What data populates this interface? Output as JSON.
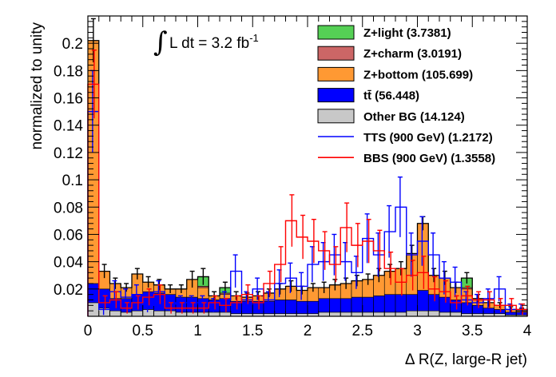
{
  "chart_data": {
    "type": "histogram",
    "ylabel": "normalized to unity",
    "xlabel": "Δ R(Z, large-R jet)",
    "xlim": [
      0,
      4
    ],
    "ylim": [
      0,
      0.22
    ],
    "x_ticks": [
      "0",
      "0.5",
      "1",
      "1.5",
      "2",
      "2.5",
      "3",
      "3.5",
      "4"
    ],
    "y_ticks": [
      "0.02",
      "0.04",
      "0.06",
      "0.08",
      "0.1",
      "0.12",
      "0.14",
      "0.16",
      "0.18",
      "0.2"
    ],
    "annotation": {
      "integral_sign": "∫",
      "text": "L dt = 3.2 fb",
      "superscript": "-1"
    },
    "bin_edges": [
      0,
      0.1,
      0.2,
      0.3,
      0.4,
      0.5,
      0.6,
      0.7,
      0.8,
      0.9,
      1.0,
      1.1,
      1.2,
      1.3,
      1.4,
      1.5,
      1.6,
      1.7,
      1.8,
      1.9,
      2.0,
      2.1,
      2.2,
      2.3,
      2.4,
      2.5,
      2.6,
      2.7,
      2.8,
      2.9,
      3.0,
      3.1,
      3.2,
      3.3,
      3.4,
      3.5,
      3.6,
      3.7,
      3.8,
      3.9,
      4.0
    ],
    "stack": [
      {
        "name": "Other BG (14.124)",
        "color": "#c8c8c8",
        "values": [
          0.01,
          0.006,
          0.004,
          0.003,
          0.004,
          0.005,
          0.004,
          0.004,
          0.003,
          0.003,
          0.003,
          0.003,
          0.003,
          0.002,
          0.002,
          0.002,
          0.002,
          0.002,
          0.002,
          0.002,
          0.002,
          0.003,
          0.003,
          0.003,
          0.003,
          0.003,
          0.003,
          0.003,
          0.003,
          0.004,
          0.004,
          0.004,
          0.003,
          0.003,
          0.002,
          0.002,
          0.002,
          0.002,
          0.001,
          0.001
        ]
      },
      {
        "name": "tt̄ (56.448)",
        "color": "#0000ff",
        "values": [
          0.014,
          0.014,
          0.009,
          0.01,
          0.012,
          0.013,
          0.013,
          0.012,
          0.011,
          0.011,
          0.01,
          0.009,
          0.01,
          0.009,
          0.009,
          0.009,
          0.009,
          0.01,
          0.01,
          0.009,
          0.009,
          0.01,
          0.01,
          0.01,
          0.011,
          0.011,
          0.012,
          0.013,
          0.013,
          0.012,
          0.015,
          0.012,
          0.011,
          0.009,
          0.008,
          0.006,
          0.004,
          0.003,
          0.002,
          0.002
        ]
      },
      {
        "name": "Z+bottom (105.699)",
        "color": "#ff9933",
        "values": [
          0.178,
          0.013,
          0.011,
          0.008,
          0.015,
          0.007,
          0.006,
          0.004,
          0.006,
          0.013,
          0.008,
          0.003,
          0.003,
          0.004,
          0.003,
          0.004,
          0.006,
          0.008,
          0.01,
          0.008,
          0.01,
          0.008,
          0.01,
          0.011,
          0.012,
          0.013,
          0.015,
          0.017,
          0.019,
          0.03,
          0.049,
          0.014,
          0.014,
          0.009,
          0.01,
          0.005,
          0.004,
          0.003,
          0.002,
          0.001
        ]
      },
      {
        "name": "Z+charm (3.0191)",
        "color": "#cc6666",
        "values": [
          0,
          0,
          0,
          0,
          0,
          0,
          0,
          0,
          0,
          0,
          0.001,
          0,
          0.001,
          0,
          0,
          0,
          0,
          0,
          0,
          0,
          0,
          0,
          0,
          0,
          0,
          0,
          0,
          0,
          0,
          0,
          0,
          0,
          0,
          0,
          0.001,
          0,
          0,
          0,
          0,
          0
        ]
      },
      {
        "name": "Z+light (3.7381)",
        "color": "#55d055",
        "values": [
          0,
          0,
          0,
          0,
          0,
          0,
          0,
          0,
          0,
          0,
          0.007,
          0,
          0.004,
          0,
          0,
          0,
          0,
          0,
          0,
          0,
          0,
          0,
          0,
          0,
          0,
          0,
          0,
          0,
          0,
          0,
          0,
          0,
          0,
          0,
          0.007,
          0,
          0,
          0,
          0,
          0
        ]
      }
    ],
    "stack_errors": [
      0.016,
      0.005,
      0.004,
      0.003,
      0.004,
      0.004,
      0.004,
      0.003,
      0.003,
      0.006,
      0.006,
      0.003,
      0.004,
      0.003,
      0.003,
      0.003,
      0.003,
      0.004,
      0.004,
      0.003,
      0.003,
      0.004,
      0.004,
      0.004,
      0.004,
      0.004,
      0.005,
      0.005,
      0.005,
      0.006,
      0.005,
      0.005,
      0.005,
      0.004,
      0.004,
      0.003,
      0.003,
      0.002,
      0.002,
      0.002
    ],
    "signals": [
      {
        "name": "TTS (900 GeV) (1.2172)",
        "color": "#0000ff",
        "values": [
          0.15,
          0.005,
          0.018,
          0.014,
          0.016,
          0.008,
          0.018,
          0.009,
          0.01,
          0.01,
          0.01,
          0.008,
          0.012,
          0.033,
          0.012,
          0.02,
          0.012,
          0.024,
          0.028,
          0.022,
          0.038,
          0.04,
          0.045,
          0.04,
          0.032,
          0.057,
          0.045,
          0.062,
          0.08,
          0.045,
          0.055,
          0.045,
          0.028,
          0.025,
          0.012,
          0.01,
          0.013,
          0.02,
          0.005,
          0.005
        ],
        "errors": [
          0.03,
          0.004,
          0.008,
          0.006,
          0.007,
          0.005,
          0.008,
          0.005,
          0.005,
          0.005,
          0.005,
          0.005,
          0.006,
          0.012,
          0.006,
          0.008,
          0.006,
          0.01,
          0.011,
          0.01,
          0.013,
          0.014,
          0.015,
          0.014,
          0.012,
          0.018,
          0.016,
          0.019,
          0.022,
          0.016,
          0.018,
          0.016,
          0.012,
          0.011,
          0.006,
          0.006,
          0.007,
          0.009,
          0.004,
          0.004
        ]
      },
      {
        "name": "BBS (900 GeV) (1.3558)",
        "color": "#ff0000",
        "values": [
          0.17,
          0.01,
          0.012,
          0.006,
          0.01,
          0.014,
          0.016,
          0.006,
          0.006,
          0.006,
          0.006,
          0.01,
          0.008,
          0.01,
          0.016,
          0.01,
          0.024,
          0.038,
          0.07,
          0.058,
          0.055,
          0.048,
          0.038,
          0.065,
          0.052,
          0.055,
          0.048,
          0.035,
          0.025,
          0.03,
          0.032,
          0.02,
          0.018,
          0.01,
          0.015,
          0.012,
          0.012,
          0.008,
          0.008,
          0.005
        ],
        "errors": [
          0.025,
          0.005,
          0.006,
          0.004,
          0.005,
          0.006,
          0.007,
          0.004,
          0.004,
          0.004,
          0.004,
          0.005,
          0.005,
          0.005,
          0.007,
          0.005,
          0.009,
          0.013,
          0.019,
          0.016,
          0.016,
          0.014,
          0.013,
          0.018,
          0.016,
          0.016,
          0.015,
          0.012,
          0.01,
          0.011,
          0.012,
          0.009,
          0.008,
          0.005,
          0.007,
          0.006,
          0.006,
          0.005,
          0.005,
          0.004
        ]
      }
    ],
    "legend": [
      {
        "label": "Z+light (3.7381)",
        "kind": "box",
        "color": "#55d055"
      },
      {
        "label": "Z+charm (3.0191)",
        "kind": "box",
        "color": "#cc6666"
      },
      {
        "label": "Z+bottom (105.699)",
        "kind": "box",
        "color": "#ff9933"
      },
      {
        "label": "tt̄ (56.448)",
        "kind": "box",
        "color": "#0000ff"
      },
      {
        "label": "Other BG (14.124)",
        "kind": "box",
        "color": "#c8c8c8"
      },
      {
        "label": "TTS (900 GeV) (1.2172)",
        "kind": "line",
        "color": "#0000ff"
      },
      {
        "label": "BBS (900 GeV) (1.3558)",
        "kind": "line",
        "color": "#ff0000"
      }
    ],
    "legend_position": "top-right"
  }
}
